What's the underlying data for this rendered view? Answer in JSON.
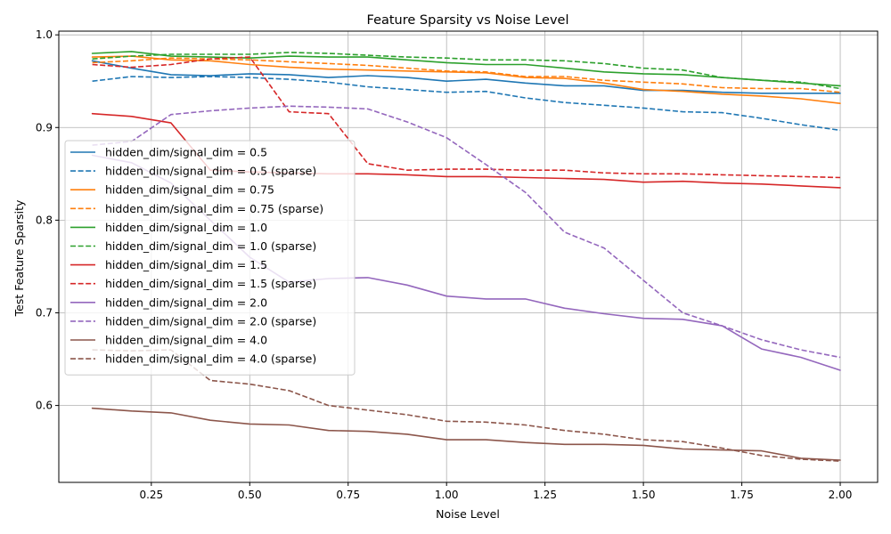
{
  "chart_data": {
    "type": "line",
    "title": "Feature Sparsity vs Noise Level",
    "xlabel": "Noise Level",
    "ylabel": "Test Feature Sparsity",
    "xlim": [
      0.015,
      2.095
    ],
    "ylim": [
      0.517,
      1.004
    ],
    "xticks": [
      0.25,
      0.5,
      0.75,
      1.0,
      1.25,
      1.5,
      1.75,
      2.0
    ],
    "xtick_labels": [
      "0.25",
      "0.50",
      "0.75",
      "1.00",
      "1.25",
      "1.50",
      "1.75",
      "2.00"
    ],
    "yticks": [
      0.6,
      0.7,
      0.8,
      0.9,
      1.0
    ],
    "ytick_labels": [
      "0.6",
      "0.7",
      "0.8",
      "0.9",
      "1.0"
    ],
    "grid": true,
    "legend_position": "center-left",
    "x": [
      0.1,
      0.2,
      0.3,
      0.4,
      0.5,
      0.6,
      0.7,
      0.8,
      0.9,
      1.0,
      1.1,
      1.2,
      1.3,
      1.4,
      1.5,
      1.6,
      1.7,
      1.8,
      1.9,
      2.0
    ],
    "series": [
      {
        "name": "hidden_dim/signal_dim = 0.5",
        "color": "#1f77b4",
        "style": "solid",
        "values": [
          0.972,
          0.964,
          0.957,
          0.956,
          0.958,
          0.957,
          0.954,
          0.956,
          0.954,
          0.95,
          0.952,
          0.948,
          0.945,
          0.945,
          0.94,
          0.94,
          0.938,
          0.937,
          0.937,
          0.937
        ]
      },
      {
        "name": "hidden_dim/signal_dim = 0.5 (sparse)",
        "color": "#1f77b4",
        "style": "dashed",
        "values": [
          0.95,
          0.955,
          0.954,
          0.955,
          0.954,
          0.952,
          0.949,
          0.944,
          0.941,
          0.938,
          0.939,
          0.932,
          0.927,
          0.924,
          0.921,
          0.917,
          0.916,
          0.91,
          0.903,
          0.897
        ]
      },
      {
        "name": "hidden_dim/signal_dim = 0.75",
        "color": "#ff7f0e",
        "style": "solid",
        "values": [
          0.976,
          0.977,
          0.973,
          0.972,
          0.968,
          0.965,
          0.963,
          0.962,
          0.961,
          0.96,
          0.959,
          0.954,
          0.953,
          0.948,
          0.941,
          0.939,
          0.936,
          0.934,
          0.931,
          0.926
        ]
      },
      {
        "name": "hidden_dim/signal_dim = 0.75 (sparse)",
        "color": "#ff7f0e",
        "style": "dashed",
        "values": [
          0.97,
          0.972,
          0.975,
          0.974,
          0.973,
          0.971,
          0.969,
          0.967,
          0.964,
          0.961,
          0.96,
          0.955,
          0.955,
          0.951,
          0.949,
          0.947,
          0.943,
          0.942,
          0.942,
          0.938
        ]
      },
      {
        "name": "hidden_dim/signal_dim = 1.0",
        "color": "#2ca02c",
        "style": "solid",
        "values": [
          0.98,
          0.982,
          0.977,
          0.976,
          0.975,
          0.977,
          0.976,
          0.976,
          0.973,
          0.97,
          0.968,
          0.968,
          0.964,
          0.96,
          0.958,
          0.957,
          0.954,
          0.951,
          0.948,
          0.945
        ]
      },
      {
        "name": "hidden_dim/signal_dim = 1.0 (sparse)",
        "color": "#2ca02c",
        "style": "dashed",
        "values": [
          0.974,
          0.977,
          0.979,
          0.979,
          0.979,
          0.981,
          0.98,
          0.978,
          0.976,
          0.975,
          0.973,
          0.973,
          0.972,
          0.969,
          0.964,
          0.962,
          0.954,
          0.951,
          0.949,
          0.942
        ]
      },
      {
        "name": "hidden_dim/signal_dim = 1.5",
        "color": "#d62728",
        "style": "solid",
        "values": [
          0.915,
          0.912,
          0.905,
          0.854,
          0.852,
          0.851,
          0.85,
          0.85,
          0.849,
          0.847,
          0.847,
          0.846,
          0.845,
          0.844,
          0.841,
          0.842,
          0.84,
          0.839,
          0.837,
          0.835
        ]
      },
      {
        "name": "hidden_dim/signal_dim = 1.5 (sparse)",
        "color": "#d62728",
        "style": "dashed",
        "values": [
          0.968,
          0.965,
          0.968,
          0.974,
          0.976,
          0.917,
          0.915,
          0.861,
          0.854,
          0.855,
          0.855,
          0.854,
          0.854,
          0.851,
          0.85,
          0.85,
          0.849,
          0.848,
          0.847,
          0.846
        ]
      },
      {
        "name": "hidden_dim/signal_dim = 2.0",
        "color": "#9467bd",
        "style": "solid",
        "values": [
          0.87,
          0.862,
          0.84,
          0.8,
          0.76,
          0.733,
          0.737,
          0.738,
          0.73,
          0.718,
          0.715,
          0.715,
          0.705,
          0.699,
          0.694,
          0.693,
          0.686,
          0.661,
          0.652,
          0.638
        ]
      },
      {
        "name": "hidden_dim/signal_dim = 2.0 (sparse)",
        "color": "#9467bd",
        "style": "dashed",
        "values": [
          0.881,
          0.885,
          0.914,
          0.918,
          0.921,
          0.923,
          0.922,
          0.92,
          0.906,
          0.889,
          0.86,
          0.83,
          0.787,
          0.77,
          0.735,
          0.7,
          0.686,
          0.671,
          0.66,
          0.652
        ]
      },
      {
        "name": "hidden_dim/signal_dim = 4.0",
        "color": "#8c564b",
        "style": "solid",
        "values": [
          0.597,
          0.594,
          0.592,
          0.584,
          0.58,
          0.579,
          0.573,
          0.572,
          0.569,
          0.563,
          0.563,
          0.56,
          0.558,
          0.558,
          0.557,
          0.553,
          0.552,
          0.551,
          0.543,
          0.541
        ]
      },
      {
        "name": "hidden_dim/signal_dim = 4.0 (sparse)",
        "color": "#8c564b",
        "style": "dashed",
        "values": [
          0.66,
          0.659,
          0.66,
          0.627,
          0.623,
          0.616,
          0.6,
          0.595,
          0.59,
          0.583,
          0.582,
          0.579,
          0.573,
          0.569,
          0.563,
          0.561,
          0.554,
          0.546,
          0.542,
          0.54
        ]
      }
    ]
  }
}
